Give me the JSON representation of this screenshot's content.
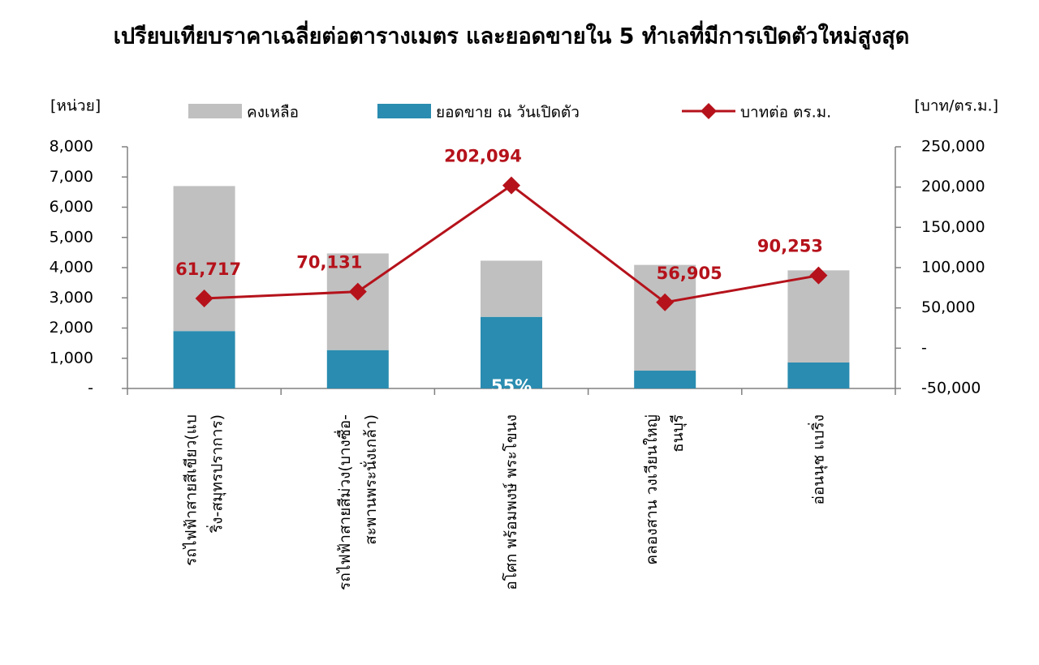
{
  "chart_data": {
    "type": "bar-line",
    "title": "เปรียบเทียบราคาเฉลี่ยต่อตารางเมตร และยอดขายใน 5 ทำเลที่มีการเปิดตัวใหม่สูงสุด",
    "y_label": "[หน่วย]",
    "y2_label": "[บาท/ตร.ม.]",
    "categories": [
      "รถไฟฟ้าสายสีเขียว(แบ\nริ่ง-สมุทรปราการ)",
      "รถไฟฟ้าสายสีม่วง(บางซื่อ-\nสะพานพระนั่งเกล้า)",
      "อโศก พร้อมพงษ์ พระโขนง",
      "คลองสาน วงเวียนใหญ่\nธนบุรี",
      "อ่อนนุช แบริ่ง"
    ],
    "series": [
      {
        "name": "คงเหลือ",
        "type": "bar",
        "color": "#c0c0c0",
        "values": [
          4800,
          3200,
          1860,
          3500,
          3050
        ]
      },
      {
        "name": "ยอดขาย ณ วันเปิดตัว",
        "type": "bar",
        "color": "#2a8cb0",
        "values": [
          1900,
          1270,
          2370,
          590,
          860
        ]
      },
      {
        "name": "บาทต่อ ตร.ม.",
        "type": "line",
        "axis": "y2",
        "color": "#b5121b",
        "values": [
          61717,
          70131,
          202094,
          56905,
          90253
        ],
        "value_labels": [
          "61,717",
          "70,131",
          "202,094",
          "56,905",
          "90,253"
        ]
      }
    ],
    "annotations": [
      {
        "text": "55%",
        "category": 2
      }
    ],
    "stacked": true,
    "ylim": [
      0,
      8000
    ],
    "yticks": [
      {
        "value": 0,
        "label": "-"
      },
      {
        "value": 1000,
        "label": "1,000"
      },
      {
        "value": 2000,
        "label": "2,000"
      },
      {
        "value": 3000,
        "label": "3,000"
      },
      {
        "value": 4000,
        "label": "4,000"
      },
      {
        "value": 5000,
        "label": "5,000"
      },
      {
        "value": 6000,
        "label": "6,000"
      },
      {
        "value": 7000,
        "label": "7,000"
      },
      {
        "value": 8000,
        "label": "8,000"
      }
    ],
    "y2lim": [
      -50000,
      250000
    ],
    "y2ticks": [
      {
        "value": -50000,
        "label": "-50,000"
      },
      {
        "value": 0,
        "label": "-"
      },
      {
        "value": 50000,
        "label": "50,000"
      },
      {
        "value": 100000,
        "label": "100,000"
      },
      {
        "value": 150000,
        "label": "150,000"
      },
      {
        "value": 200000,
        "label": "200,000"
      },
      {
        "value": 250000,
        "label": "250,000"
      }
    ],
    "legend": "top"
  }
}
